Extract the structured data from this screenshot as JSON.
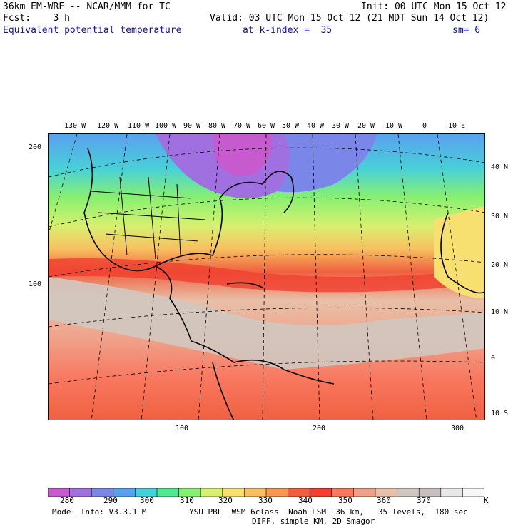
{
  "header": {
    "model": "36km EM-WRF -- NCAR/MMM for TC",
    "init": "Init: 00 UTC Mon 15 Oct 12",
    "fcst": "Fcst:    3 h",
    "valid": "Valid: 03 UTC Mon 15 Oct 12 (21 MDT Sun 14 Oct 12)",
    "field": "Equivalent potential temperature",
    "level": "at k-index =  35",
    "sm": "sm= 6"
  },
  "map": {
    "top_lon_labels": [
      "130 W",
      "120 W",
      "110 W",
      "100 W",
      "90 W",
      "80 W",
      "70 W",
      "60 W",
      "50 W",
      "40 W",
      "30 W",
      "20 W",
      "10 W",
      "0",
      "10 E"
    ],
    "right_lat_labels": [
      "40 N",
      "30 N",
      "20 N",
      "10 N",
      "0",
      "10 S"
    ],
    "left_grid_labels": [
      "200",
      "100"
    ],
    "bottom_grid_labels": [
      "100",
      "200",
      "300"
    ]
  },
  "colorbar": {
    "labels": [
      "280",
      "290",
      "300",
      "310",
      "320",
      "330",
      "340",
      "350",
      "360",
      "370"
    ],
    "unit": "K",
    "colors": [
      "#c85ad0",
      "#a070e0",
      "#7a86e8",
      "#5aa0f0",
      "#48d0d8",
      "#50e890",
      "#88f070",
      "#d8f070",
      "#f8e070",
      "#f8c060",
      "#f89850",
      "#f06040",
      "#f04030",
      "#f87860",
      "#f0a088",
      "#e8c0a8",
      "#d0c8c0",
      "#c8c0c0",
      "#e8e8e8",
      "#f8f8f8"
    ]
  },
  "footer": {
    "model_info": "Model Info: V3.3.1 M",
    "physics": "YSU PBL  WSM 6class  Noah LSM  36 km,   35 levels,  180 sec",
    "diff": "DIFF, simple KM, 2D Smagor"
  }
}
